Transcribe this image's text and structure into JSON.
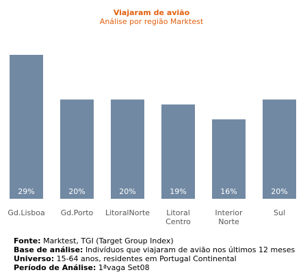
{
  "chart_data": {
    "type": "bar",
    "title": "Viajaram de avião",
    "subtitle": "Análise por região Marktest",
    "categories": [
      "Gd.Lisboa",
      "Gd.Porto",
      "LitoralNorte",
      "Litoral Centro",
      "Interior Norte",
      "Sul"
    ],
    "values": [
      29,
      20,
      20,
      19,
      16,
      20
    ],
    "value_labels": [
      "29%",
      "20%",
      "20%",
      "19%",
      "16%",
      "20%"
    ],
    "ylim": [
      0,
      30
    ],
    "grid": false,
    "bar_color": "#7189a3",
    "label_color": "#ffffff",
    "axis_text_color": "#555555"
  },
  "colors": {
    "title": "#e0600f",
    "background": "#ffffff"
  },
  "footer": {
    "fonte_label": "Fonte:",
    "fonte_value": "Marktest, TGI (Target Group Index)",
    "base_label": "Base de análise:",
    "base_value": "Indivíduos que viajaram de avião nos últimos 12 meses",
    "universo_label": "Universo:",
    "universo_value": "15-64 anos, residentes em Portugal Continental",
    "periodo_label": "Período de Análise:",
    "periodo_value": "1ªvaga Set08"
  }
}
